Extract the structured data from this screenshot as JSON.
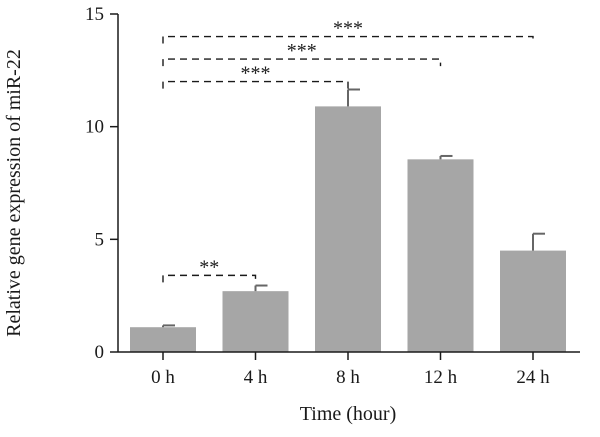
{
  "chart_data": {
    "type": "bar",
    "title": "",
    "xlabel": "Time (hour)",
    "ylabel": "Relative gene expression of miR-22",
    "categories": [
      "0 h",
      "4 h",
      "8 h",
      "12 h",
      "24 h"
    ],
    "values": [
      1.1,
      2.7,
      10.9,
      8.55,
      4.5
    ],
    "error_upper": [
      0.08,
      0.25,
      0.75,
      0.15,
      0.75
    ],
    "ylim": [
      0,
      15
    ],
    "yticks": [
      0,
      5,
      10,
      15
    ],
    "ytick_labels": [
      "0",
      "5",
      "10",
      "15"
    ],
    "grid": false,
    "colors": {
      "bar": "#a6a6a6",
      "error": "#666666",
      "axis": "#1a1a1a"
    },
    "annotations": [
      {
        "from": "0 h",
        "to": "4 h",
        "label": "**",
        "y": 3.4
      },
      {
        "from": "0 h",
        "to": "8 h",
        "label": "***",
        "y": 12.0
      },
      {
        "from": "0 h",
        "to": "12 h",
        "label": "***",
        "y": 13.0
      },
      {
        "from": "0 h",
        "to": "24 h",
        "label": "***",
        "y": 14.0
      }
    ]
  }
}
